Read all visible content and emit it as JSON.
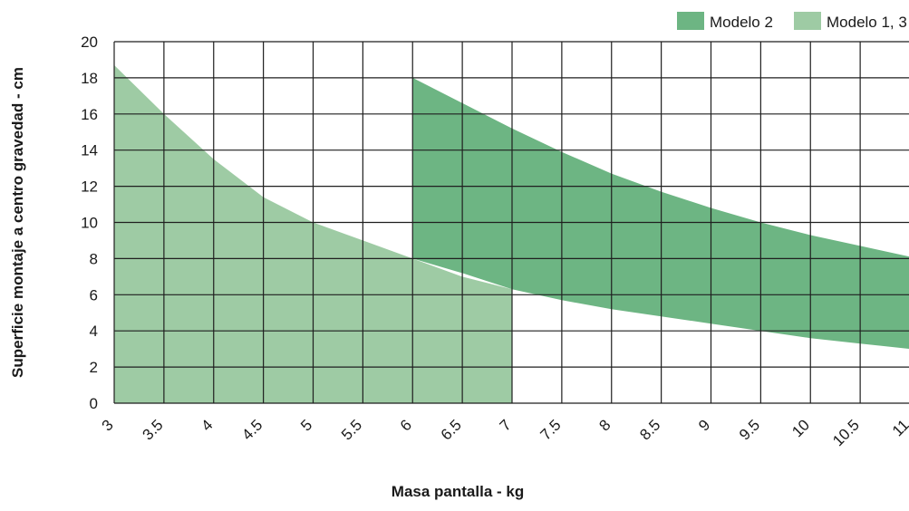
{
  "chart_data": {
    "type": "area",
    "xlabel": "Masa pantalla - kg",
    "ylabel": "Superficie montaje a centro gravedad - cm",
    "xlim": [
      3,
      11
    ],
    "ylim": [
      0,
      20
    ],
    "x_ticks": [
      "3",
      "3.5",
      "4",
      "4.5",
      "5",
      "5.5",
      "6",
      "6.5",
      "7",
      "7.5",
      "8",
      "8.5",
      "9",
      "9.5",
      "10",
      "10.5",
      "11"
    ],
    "y_ticks": [
      "0",
      "2",
      "4",
      "6",
      "8",
      "10",
      "12",
      "14",
      "16",
      "18",
      "20"
    ],
    "grid": true,
    "legend_position": "top-right",
    "series": [
      {
        "name": "Modelo 1, 3",
        "color": "#9ecba4",
        "upper": {
          "x": [
            3,
            3.5,
            4,
            4.5,
            5,
            5.5,
            6,
            6.5,
            7
          ],
          "y": [
            18.7,
            16.0,
            13.5,
            11.4,
            10.0,
            9.0,
            8.0,
            7.0,
            6.3
          ]
        },
        "lower": {
          "x": [
            3,
            7
          ],
          "y": [
            0,
            0
          ]
        }
      },
      {
        "name": "Modelo 2",
        "color": "#6db583",
        "upper": {
          "x": [
            6,
            6.5,
            7,
            7.5,
            8,
            8.5,
            9,
            9.5,
            10,
            10.5,
            11
          ],
          "y": [
            18.0,
            16.6,
            15.2,
            13.9,
            12.7,
            11.7,
            10.8,
            10.0,
            9.3,
            8.7,
            8.1
          ]
        },
        "lower": {
          "x": [
            6,
            6.5,
            7,
            7.5,
            8,
            8.5,
            9,
            9.5,
            10,
            10.5,
            11
          ],
          "y": [
            8.0,
            7.2,
            6.3,
            5.7,
            5.2,
            4.8,
            4.4,
            4.0,
            3.6,
            3.3,
            3.0
          ]
        }
      }
    ],
    "legend": [
      {
        "label": "Modelo 2",
        "color": "#6db583"
      },
      {
        "label": "Modelo 1, 3",
        "color": "#9ecba4"
      }
    ]
  }
}
